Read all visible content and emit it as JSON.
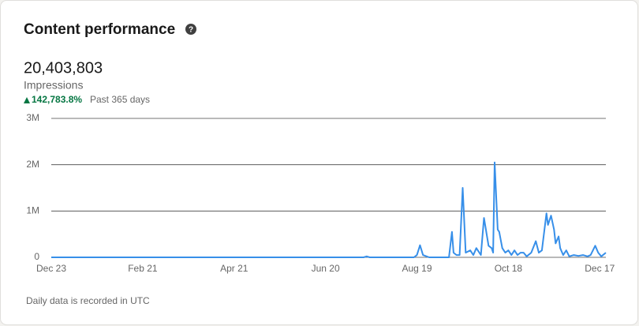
{
  "header": {
    "title": "Content performance",
    "total": "20,403,803",
    "metric": "Impressions",
    "change": "142,783.8%",
    "period": "Past 365 days"
  },
  "chart_data": {
    "type": "line",
    "x": [
      0,
      205,
      207,
      209,
      238,
      240,
      242,
      244,
      248,
      261,
      263,
      264,
      266,
      268,
      270,
      272,
      275,
      277,
      279,
      282,
      284,
      287,
      289,
      290,
      291,
      293,
      294,
      296,
      298,
      300,
      302,
      304,
      306,
      308,
      310,
      312,
      315,
      318,
      320,
      322,
      325,
      326,
      328,
      330,
      331,
      333,
      334,
      336,
      338,
      340,
      343,
      346,
      349,
      352,
      354,
      357,
      359,
      361,
      364
    ],
    "series": [
      {
        "name": "Impressions",
        "color": "#378fe9",
        "values": [
          0,
          0,
          20000,
          0,
          0,
          50000,
          260000,
          50000,
          0,
          0,
          550000,
          100000,
          50000,
          50000,
          1500000,
          100000,
          150000,
          50000,
          200000,
          50000,
          850000,
          250000,
          200000,
          100000,
          2050000,
          600000,
          550000,
          200000,
          100000,
          150000,
          50000,
          150000,
          50000,
          100000,
          100000,
          20000,
          100000,
          350000,
          100000,
          150000,
          950000,
          700000,
          900000,
          600000,
          300000,
          450000,
          200000,
          50000,
          150000,
          20000,
          50000,
          30000,
          50000,
          20000,
          50000,
          250000,
          100000,
          20000,
          100000
        ]
      }
    ],
    "xlim": [
      0,
      364
    ],
    "xticks": [
      {
        "value": 0,
        "label": "Dec 23"
      },
      {
        "value": 60,
        "label": "Feb 21"
      },
      {
        "value": 120,
        "label": "Apr 21"
      },
      {
        "value": 180,
        "label": "Jun 20"
      },
      {
        "value": 240,
        "label": "Aug 19"
      },
      {
        "value": 300,
        "label": "Oct 18"
      },
      {
        "value": 360,
        "label": "Dec 17"
      }
    ],
    "ylim": [
      0,
      3000000
    ],
    "yticks": [
      0,
      {
        "value": 1000000,
        "label": "1M"
      },
      {
        "value": 2000000,
        "label": "2M"
      },
      {
        "value": 3000000,
        "label": "3M"
      }
    ],
    "grid": true
  },
  "footer": {
    "note": "Daily data is recorded in UTC"
  }
}
